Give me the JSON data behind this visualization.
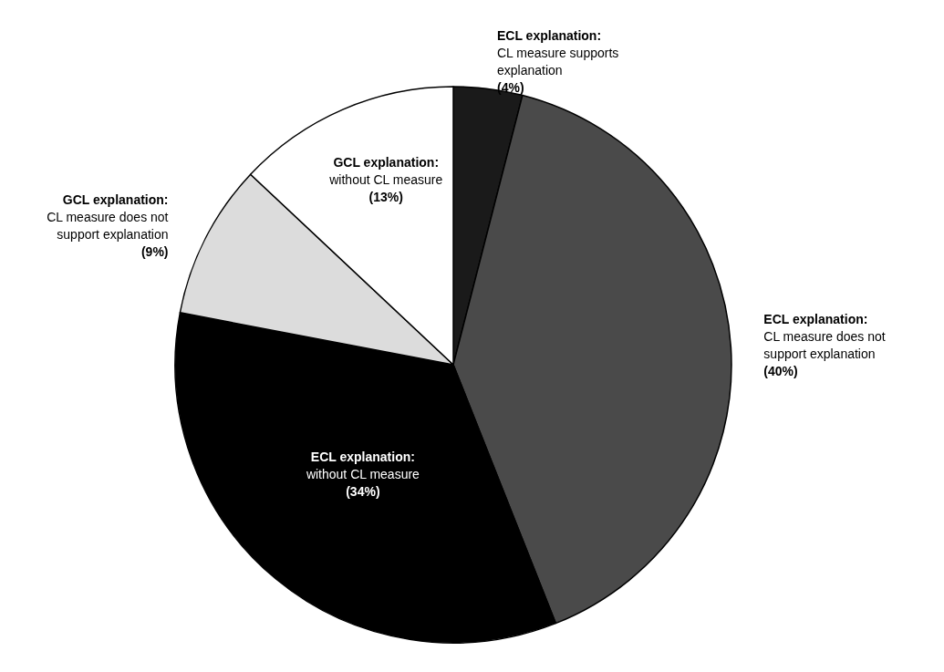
{
  "chart_data": {
    "type": "pie",
    "categories": [
      "ECL explanation:\nCL measure supports\nexplanation",
      "ECL explanation:\nCL measure does not\nsupport explanation",
      "ECL explanation:\nwithout CL measure",
      "GCL explanation:\nCL measure does not\nsupport explanation",
      "GCL explanation:\nwithout CL measure"
    ],
    "values": [
      4,
      40,
      34,
      9,
      13
    ],
    "value_labels": [
      "(4%)",
      "(40%)",
      "(34%)",
      "(9%)",
      "(13%)"
    ],
    "colors": [
      "#1a1a1a",
      "#4a4a4a",
      "#000000",
      "#dcdcdc",
      "#ffffff"
    ]
  }
}
